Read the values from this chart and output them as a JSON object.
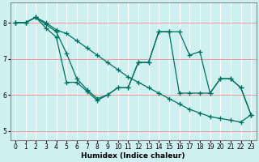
{
  "xlabel": "Humidex (Indice chaleur)",
  "bg_color": "#cff0f0",
  "line_color": "#007060",
  "xlim": [
    -0.5,
    23.5
  ],
  "ylim": [
    4.75,
    8.55
  ],
  "xticks": [
    0,
    1,
    2,
    3,
    4,
    5,
    6,
    7,
    8,
    9,
    10,
    11,
    12,
    13,
    14,
    15,
    16,
    17,
    18,
    19,
    20,
    21,
    22,
    23
  ],
  "yticks": [
    5,
    6,
    7,
    8
  ],
  "red_hlines": [
    5,
    6,
    7,
    8
  ],
  "lines": [
    [
      8.0,
      8.0,
      8.15,
      8.0,
      7.8,
      7.7,
      7.5,
      7.3,
      7.1,
      6.9,
      6.7,
      6.5,
      6.35,
      6.2,
      6.05,
      5.9,
      5.75,
      5.6,
      5.5,
      5.4,
      5.35,
      5.3,
      5.25,
      5.45
    ],
    [
      8.0,
      8.0,
      8.15,
      7.95,
      7.75,
      7.15,
      6.45,
      6.15,
      5.9,
      6.0,
      6.2,
      6.2,
      6.9,
      6.9,
      7.75,
      7.75,
      7.75,
      7.1,
      7.2,
      6.05,
      6.45,
      6.45,
      6.2,
      5.45
    ],
    [
      8.0,
      8.0,
      8.15,
      7.85,
      7.6,
      6.35,
      6.35,
      6.1,
      5.85,
      6.0,
      6.2,
      6.2,
      6.9,
      6.9,
      7.75,
      7.75,
      6.05,
      6.05,
      6.05,
      6.05,
      6.45,
      6.45,
      6.2,
      5.45
    ]
  ],
  "marker": "+",
  "markersize": 4,
  "linewidth": 0.9
}
